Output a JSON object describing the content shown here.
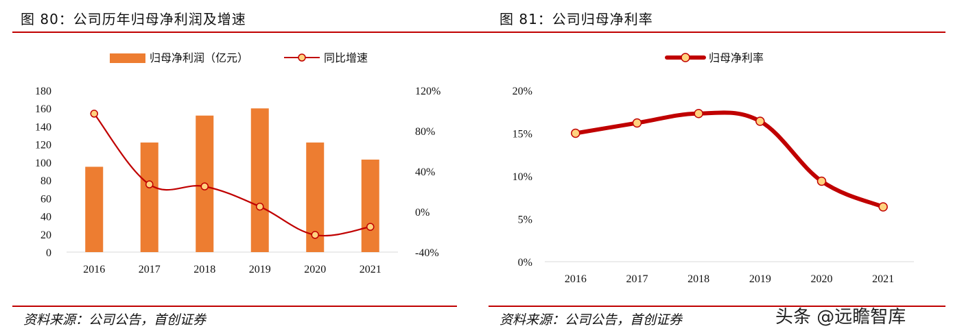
{
  "left_panel": {
    "title": "图 80：公司历年归母净利润及增速",
    "source": "资料来源：公司公告，首创证券"
  },
  "right_panel": {
    "title": "图 81：公司归母净利率",
    "source": "资料来源：公司公告，首创证券"
  },
  "watermark": "头条 @远瞻智库",
  "colors": {
    "bar": "#ed7d31",
    "line": "#c00000",
    "marker_fill": "#ffd27f",
    "rule": "#c00000"
  },
  "chart_data": [
    {
      "type": "bar",
      "categories": [
        "2016",
        "2017",
        "2018",
        "2019",
        "2020",
        "2021"
      ],
      "series": [
        {
          "name": "归母净利润（亿元）",
          "type": "bar",
          "axis": "left",
          "values": [
            95,
            122,
            152,
            160,
            122,
            103
          ]
        },
        {
          "name": "同比增速",
          "type": "line",
          "axis": "right",
          "values": [
            97,
            27,
            25,
            5,
            -23,
            -15
          ]
        }
      ],
      "ylim": [
        0,
        180
      ],
      "yticks": [
        "0",
        "20",
        "40",
        "60",
        "80",
        "100",
        "120",
        "140",
        "160",
        "180"
      ],
      "y2lim": [
        -40,
        120
      ],
      "y2ticks": [
        "-40%",
        "0%",
        "40%",
        "80%",
        "120%"
      ],
      "legend": "top",
      "grid": false
    },
    {
      "type": "line",
      "categories": [
        "2016",
        "2017",
        "2018",
        "2019",
        "2020",
        "2021"
      ],
      "series": [
        {
          "name": "归母净利率",
          "values": [
            15.0,
            16.2,
            17.3,
            16.4,
            9.4,
            6.4
          ]
        }
      ],
      "ylim": [
        0,
        20
      ],
      "yticks": [
        "0%",
        "5%",
        "10%",
        "15%",
        "20%"
      ],
      "legend": "top",
      "grid": false
    }
  ]
}
